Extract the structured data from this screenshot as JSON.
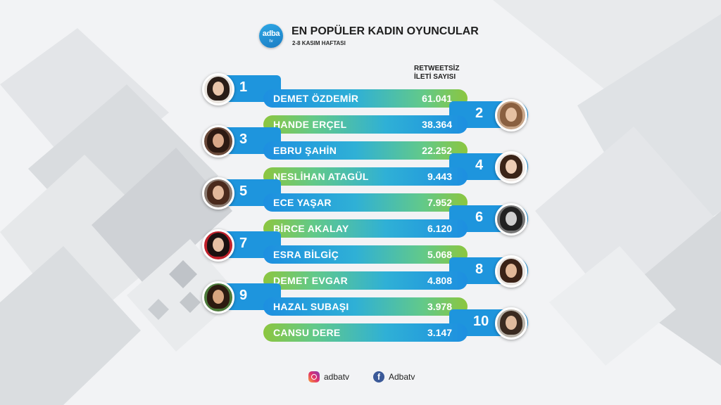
{
  "header": {
    "logo_text": "adba",
    "logo_sub": "tv",
    "title": "EN POPÜLER KADIN OYUNCULAR",
    "subtitle": "2-8 KASIM HAFTASI"
  },
  "column_header": [
    "RETWEETSİZ",
    "İLETİ SAYISI"
  ],
  "colors": {
    "tab_blue": "#1e95dd",
    "green": "#8cc63f",
    "blue": "#1d8fe0"
  },
  "ranking": [
    {
      "rank": "1",
      "name": "DEMET ÖZDEMİR",
      "value": "61.041"
    },
    {
      "rank": "2",
      "name": "HANDE ERÇEL",
      "value": "38.364"
    },
    {
      "rank": "3",
      "name": "EBRU ŞAHİN",
      "value": "22.252"
    },
    {
      "rank": "4",
      "name": "NESLİHAN ATAGÜL",
      "value": "9.443"
    },
    {
      "rank": "5",
      "name": "ECE YAŞAR",
      "value": "7.952"
    },
    {
      "rank": "6",
      "name": "BİRCE AKALAY",
      "value": "6.120"
    },
    {
      "rank": "7",
      "name": "ESRA BİLGİÇ",
      "value": "5.068"
    },
    {
      "rank": "8",
      "name": "DEMET EVGAR",
      "value": "4.808"
    },
    {
      "rank": "9",
      "name": "HAZAL SUBAŞI",
      "value": "3.978"
    },
    {
      "rank": "10",
      "name": "CANSU DERE",
      "value": "3.147"
    }
  ],
  "footer": {
    "instagram": "adbatv",
    "facebook": "Adbatv"
  }
}
